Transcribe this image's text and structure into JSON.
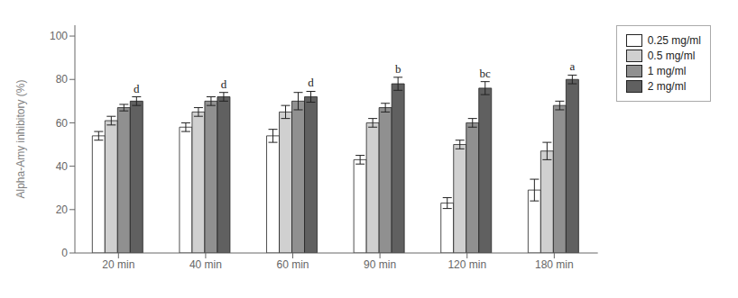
{
  "chart_data": {
    "type": "bar",
    "categories": [
      "20 min",
      "40 min",
      "60 min",
      "90 min",
      "120 min",
      "180 min"
    ],
    "series": [
      {
        "name": "0.25 mg/ml",
        "color": "#ffffff",
        "values": [
          54,
          58,
          54,
          43,
          23,
          29
        ],
        "errors": [
          2.0,
          2.0,
          3.0,
          2.0,
          2.5,
          5.0
        ]
      },
      {
        "name": "0.5 mg/ml",
        "color": "#d0d0d0",
        "values": [
          61,
          65,
          65,
          60,
          50,
          47
        ],
        "errors": [
          2.0,
          2.0,
          3.0,
          2.0,
          2.0,
          4.0
        ]
      },
      {
        "name": "1 mg/ml",
        "color": "#909090",
        "values": [
          67,
          70,
          70,
          67,
          60,
          68
        ],
        "errors": [
          1.5,
          2.0,
          4.0,
          2.0,
          2.0,
          2.0
        ]
      },
      {
        "name": "2 mg/ml",
        "color": "#606060",
        "values": [
          70,
          72,
          72,
          78,
          76,
          80
        ],
        "errors": [
          2.0,
          2.0,
          2.5,
          3.0,
          3.0,
          2.0
        ]
      }
    ],
    "ylabel": "Alpha-Amy inhibitory (%)",
    "ylim": [
      0,
      105
    ],
    "yticks": [
      0,
      20,
      40,
      60,
      80,
      100
    ],
    "annotations": [
      {
        "category": "20 min",
        "series": "2 mg/ml",
        "text": "d"
      },
      {
        "category": "40 min",
        "series": "2 mg/ml",
        "text": "d"
      },
      {
        "category": "60 min",
        "series": "2 mg/ml",
        "text": "d"
      },
      {
        "category": "90 min",
        "series": "2 mg/ml",
        "text": "b"
      },
      {
        "category": "120 min",
        "series": "2 mg/ml",
        "text": "bc"
      },
      {
        "category": "180 min",
        "series": "2 mg/ml",
        "text": "a"
      }
    ],
    "grid": false,
    "legend": "right"
  }
}
